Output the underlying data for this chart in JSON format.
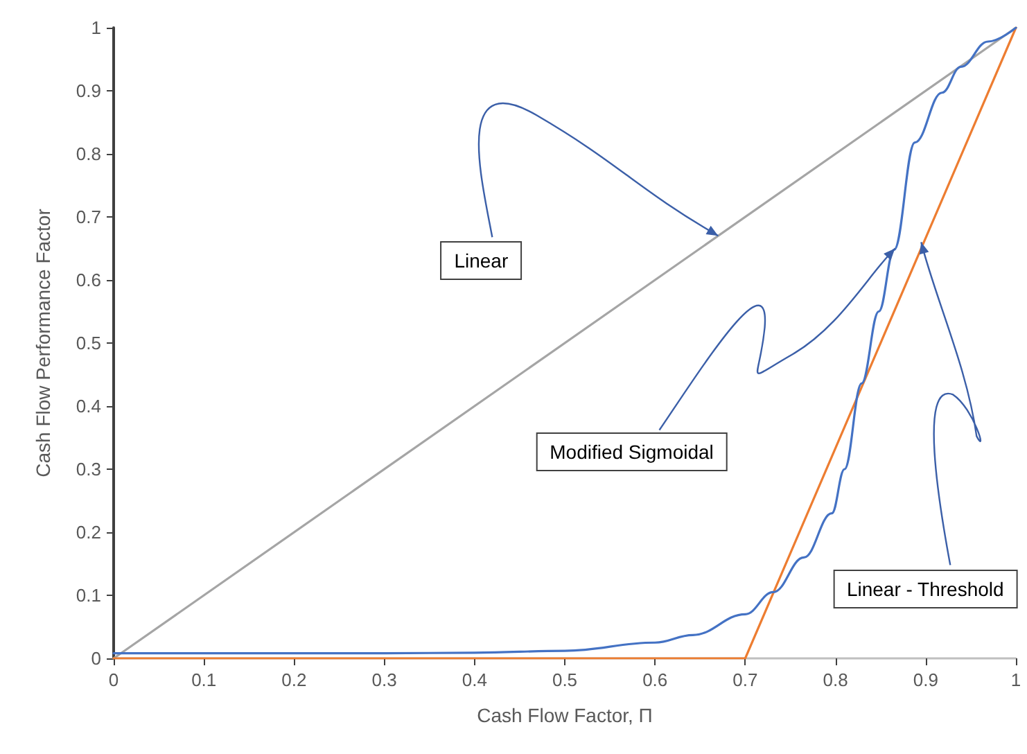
{
  "chart_data": {
    "type": "line",
    "xlabel": "Cash Flow Factor, Π",
    "ylabel": "Cash Flow Performance Factor",
    "series": [
      {
        "color": "#a5a5a5",
        "x": [
          0,
          1
        ],
        "values": [
          0,
          1
        ]
      },
      {
        "color": "#ed7d31",
        "x": [
          0,
          0.7,
          1
        ],
        "values": [
          0,
          0,
          1
        ]
      },
      {
        "color": "#4472c4",
        "x": [
          0,
          0.1,
          0.2,
          0.3,
          0.4,
          0.5,
          0.6,
          0.642,
          0.7,
          0.731,
          0.765,
          0.796,
          0.81,
          0.829,
          0.848,
          0.865,
          0.888,
          0.918,
          0.939,
          0.969,
          1
        ],
        "values": [
          0.008,
          0.008,
          0.008,
          0.008,
          0.009,
          0.012,
          0.025,
          0.037,
          0.07,
          0.105,
          0.16,
          0.23,
          0.3,
          0.436,
          0.55,
          0.648,
          0.818,
          0.897,
          0.938,
          0.978,
          1
        ]
      }
    ],
    "xlim": [
      0,
      1
    ],
    "xticks": [
      0,
      0.1,
      0.2,
      0.3,
      0.4,
      0.5,
      0.6,
      0.7,
      0.8,
      0.9,
      1
    ],
    "ylim": [
      0,
      1
    ],
    "yticks": [
      0,
      0.1,
      0.2,
      0.3,
      0.4,
      0.5,
      0.6,
      0.7,
      0.8,
      0.9,
      1
    ],
    "grid": false,
    "marker": "none",
    "line_style": "solid",
    "annotations": [
      {
        "text": "Linear",
        "x": 0.67,
        "y": 0.67
      },
      {
        "text": "Modified Sigmoidal",
        "x": 0.866,
        "y": 0.65
      },
      {
        "text": "Linear - Threshold",
        "x": 0.895,
        "y": 0.66
      }
    ]
  }
}
